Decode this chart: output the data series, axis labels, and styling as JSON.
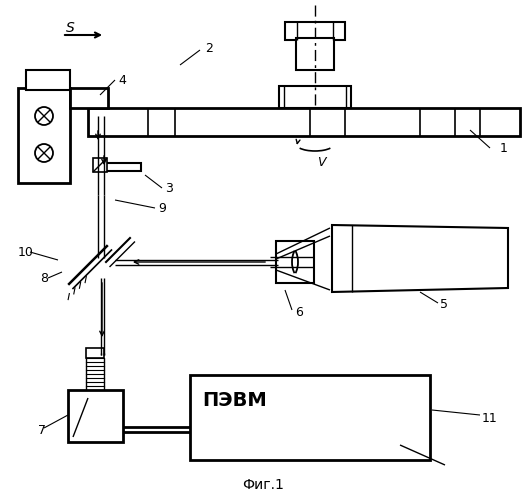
{
  "title": "Фиг.1",
  "label_S": "S",
  "label_V": "V",
  "label_PEVM": "ПЭВМ",
  "bg_color": "#ffffff",
  "line_color": "#000000",
  "lw": 1.5
}
